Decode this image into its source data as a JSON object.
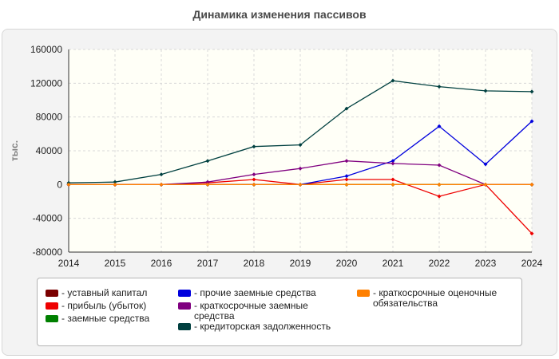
{
  "chart_data": {
    "type": "line",
    "title": "Динамика изменения пассивов",
    "ylabel": "тыс.",
    "xlabel": "",
    "x": [
      2014,
      2015,
      2016,
      2017,
      2018,
      2019,
      2020,
      2021,
      2022,
      2023,
      2024
    ],
    "ylim": [
      -80000,
      160000
    ],
    "yticks": [
      160000,
      120000,
      80000,
      40000,
      0,
      -40000,
      -80000
    ],
    "grid": true,
    "legend_position": "bottom",
    "series": [
      {
        "name": "уставный капитал",
        "color": "#7a0000",
        "values": [
          0,
          0,
          0,
          0,
          0,
          0,
          0,
          0,
          0,
          0,
          0
        ]
      },
      {
        "name": "прибыль (убыток)",
        "color": "#ee0000",
        "values": [
          0,
          0,
          0,
          2000,
          6000,
          0,
          6000,
          6000,
          -14000,
          0,
          -58000
        ]
      },
      {
        "name": "заемные средства",
        "color": "#008000",
        "values": [
          0,
          0,
          0,
          0,
          0,
          0,
          0,
          0,
          0,
          0,
          0
        ]
      },
      {
        "name": "прочие заемные средства",
        "color": "#0000dd",
        "values": [
          0,
          0,
          0,
          0,
          0,
          0,
          10000,
          28000,
          69000,
          24000,
          75000
        ]
      },
      {
        "name": "краткосрочные заемные средства",
        "color": "#800080",
        "values": [
          0,
          0,
          0,
          3000,
          12000,
          19000,
          28000,
          25000,
          23000,
          0,
          0
        ]
      },
      {
        "name": "кредиторская задолженность",
        "color": "#004040",
        "values": [
          2000,
          3000,
          12000,
          28000,
          45000,
          47000,
          90000,
          123000,
          116000,
          111000,
          110000
        ]
      },
      {
        "name": "краткосрочные оценочные обязательства",
        "color": "#ff8000",
        "values": [
          0,
          0,
          0,
          0,
          0,
          0,
          0,
          0,
          0,
          0,
          0
        ]
      }
    ]
  },
  "legend": {
    "items": [
      {
        "label": "- уставный капитал",
        "color": "#7a0000"
      },
      {
        "label": "- прибыль (убыток)",
        "color": "#ee0000"
      },
      {
        "label": "- заемные средства",
        "color": "#008000"
      },
      {
        "label": "- прочие заемные средства",
        "color": "#0000dd"
      },
      {
        "label": "- краткосрочные заемные средства",
        "color": "#800080"
      },
      {
        "label": "- кредиторская задолженность",
        "color": "#004040"
      },
      {
        "label": "- краткосрочные оценочные обязательства",
        "color": "#ff8000"
      }
    ]
  }
}
